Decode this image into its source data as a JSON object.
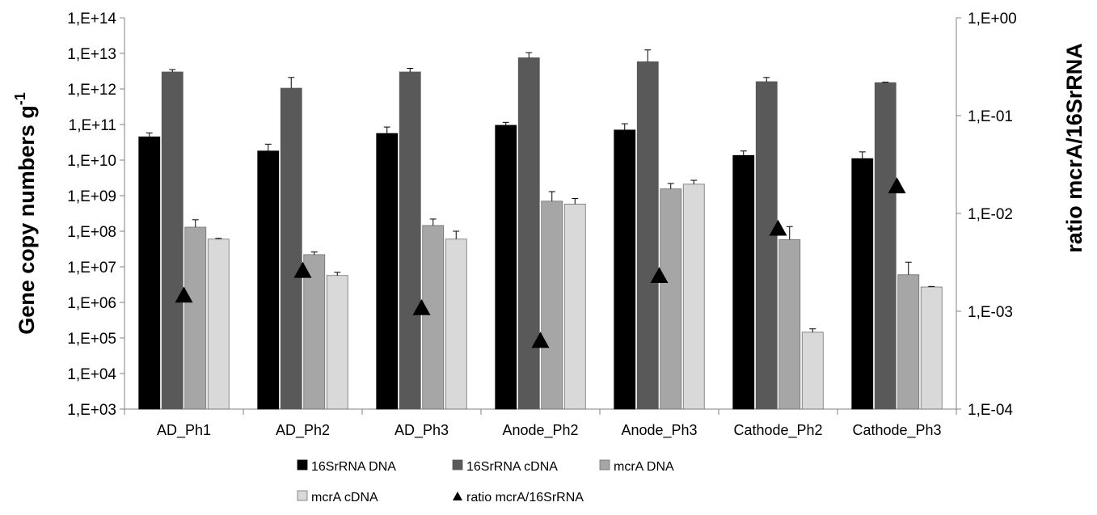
{
  "chart_data": {
    "type": "bar",
    "categories": [
      "AD_Ph1",
      "AD_Ph2",
      "AD_Ph3",
      "Anode_Ph2",
      "Anode_Ph3",
      "Cathode_Ph2",
      "Cathode_Ph3"
    ],
    "y_left": {
      "label": "Gene copy numbers g",
      "label_superscript": "-1",
      "scale": "log",
      "ylim": [
        1000.0,
        100000000000000.0
      ],
      "tick_labels": [
        "1,E+03",
        "1,E+04",
        "1,E+05",
        "1,E+06",
        "1,E+07",
        "1,E+08",
        "1,E+09",
        "1,E+10",
        "1,E+11",
        "1,E+12",
        "1,E+13",
        "1,E+14"
      ]
    },
    "y_right": {
      "label": "ratio mcrA/16SrRNA",
      "scale": "log",
      "ylim": [
        0.0001,
        1
      ],
      "tick_labels": [
        "1,E-04",
        "1,E-03",
        "1,E-02",
        "1,E-01",
        "1,E+00"
      ]
    },
    "grid": false,
    "legend_position": "bottom",
    "series": [
      {
        "name": "16SrRNA DNA",
        "color": "#000000",
        "axis": "left",
        "values": [
          45000000000.0,
          18000000000.0,
          56000000000.0,
          95000000000.0,
          70000000000.0,
          13500000000.0,
          11000000000.0
        ],
        "errors_upper": [
          58000000000.0,
          28000000000.0,
          85000000000.0,
          115000000000.0,
          105000000000.0,
          18000000000.0,
          17000000000.0
        ]
      },
      {
        "name": "16SrRNA cDNA",
        "color": "#595959",
        "axis": "left",
        "values": [
          3000000000000.0,
          1050000000000.0,
          3000000000000.0,
          7500000000000.0,
          5800000000000.0,
          1600000000000.0,
          1500000000000.0
        ],
        "errors_upper": [
          3500000000000.0,
          2100000000000.0,
          3800000000000.0,
          10500000000000.0,
          12500000000000.0,
          2100000000000.0,
          1550000000000.0
        ]
      },
      {
        "name": "mcrA DNA",
        "color": "#a6a6a6",
        "axis": "left",
        "values": [
          130000000.0,
          22000000.0,
          145000000.0,
          700000000.0,
          1550000000.0,
          58000000.0,
          6000000.0
        ],
        "errors_upper": [
          210000000.0,
          26000000.0,
          220000000.0,
          1300000000.0,
          2200000000.0,
          135000000.0,
          13500000.0
        ]
      },
      {
        "name": "mcrA cDNA",
        "color": "#d9d9d9",
        "axis": "left",
        "values": [
          60000000.0,
          5700000.0,
          60000000.0,
          580000000.0,
          2100000000.0,
          145000.0,
          2700000.0
        ],
        "errors_upper": [
          63000000.0,
          7000000.0,
          100000000.0,
          830000000.0,
          2700000000.0,
          180000.0,
          2800000.0
        ]
      },
      {
        "name": "ratio mcrA/16SrRNA",
        "color": "#000000",
        "axis": "right",
        "marker": "triangle",
        "values": [
          0.00145,
          0.0026,
          0.00108,
          0.0005,
          0.0023,
          0.007,
          0.019
        ]
      }
    ]
  }
}
